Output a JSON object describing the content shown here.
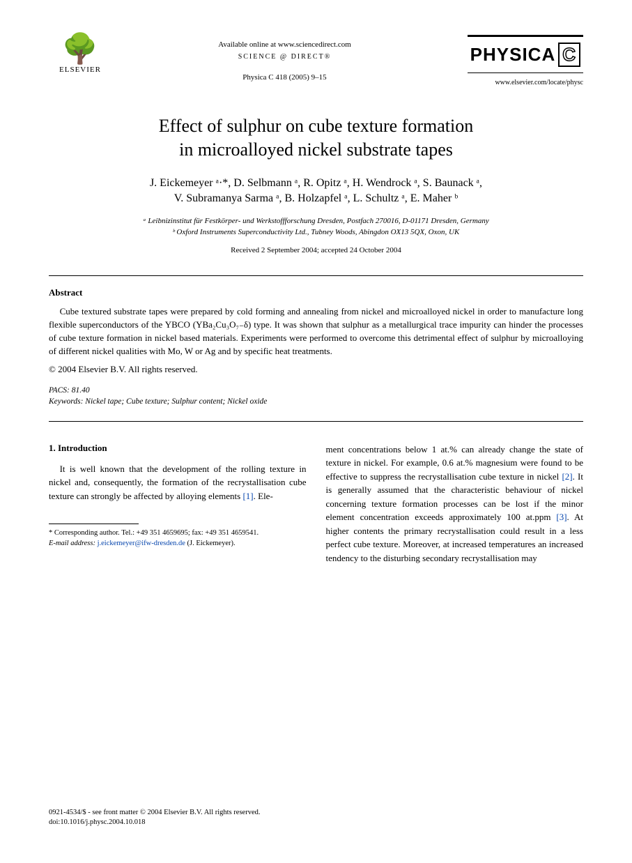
{
  "header": {
    "publisher_name": "ELSEVIER",
    "available_text": "Available online at www.sciencedirect.com",
    "science_direct": "SCIENCE @ DIRECT®",
    "journal_ref": "Physica C 418 (2005) 9–15",
    "journal_name": "PHYSICA",
    "journal_letter": "C",
    "journal_url": "www.elsevier.com/locate/physc"
  },
  "title_line1": "Effect of sulphur on cube texture formation",
  "title_line2": "in microalloyed nickel substrate tapes",
  "authors_line1": "J. Eickemeyer ᵃ·*, D. Selbmann ᵃ, R. Opitz ᵃ, H. Wendrock ᵃ, S. Baunack ᵃ,",
  "authors_line2": "V. Subramanya Sarma ᵃ, B. Holzapfel ᵃ, L. Schultz ᵃ, E. Maher ᵇ",
  "affiliation_a": "ᵃ Leibnizinstitut für Festkörper- und Werkstoffforschung Dresden, Postfach 270016, D-01171 Dresden, Germany",
  "affiliation_b": "ᵇ Oxford Instruments Superconductivity Ltd., Tubney Woods, Abingdon OX13 5QX, Oxon, UK",
  "dates": "Received 2 September 2004; accepted 24 October 2004",
  "abstract": {
    "heading": "Abstract",
    "text": "Cube textured substrate tapes were prepared by cold forming and annealing from nickel and microalloyed nickel in order to manufacture long flexible superconductors of the YBCO (YBa₂Cu₃O₇₋δ) type. It was shown that sulphur as a metallurgical trace impurity can hinder the processes of cube texture formation in nickel based materials. Experiments were performed to overcome this detrimental effect of sulphur by microalloying of different nickel qualities with Mo, W or Ag and by specific heat treatments.",
    "copyright": "© 2004 Elsevier B.V. All rights reserved."
  },
  "pacs": {
    "label": "PACS:",
    "value": "81.40"
  },
  "keywords": {
    "label": "Keywords:",
    "value": "Nickel tape; Cube texture; Sulphur content; Nickel oxide"
  },
  "body": {
    "section_heading": "1. Introduction",
    "col1_text": "It is well known that the development of the rolling texture in nickel and, consequently, the formation of the recrystallisation cube texture can strongly be affected by alloying elements ",
    "col1_ref1": "[1]",
    "col1_text_end": ". Ele-",
    "col2_text1": "ment concentrations below 1 at.% can already change the state of texture in nickel. For example, 0.6 at.% magnesium were found to be effective to suppress the recrystallisation cube texture in nickel ",
    "col2_ref2": "[2]",
    "col2_text2": ". It is generally assumed that the characteristic behaviour of nickel concerning texture formation processes can be lost if the minor element concentration exceeds approximately 100 at.ppm ",
    "col2_ref3": "[3]",
    "col2_text3": ". At higher contents the primary recrystallisation could result in a less perfect cube texture. Moreover, at increased temperatures an increased tendency to the disturbing secondary recrystallisation may"
  },
  "footnote": {
    "corresponding": "* Corresponding author. Tel.: +49 351 4659695; fax: +49 351 4659541.",
    "email_label": "E-mail address:",
    "email": "j.eickemeyer@ifw-dresden.de",
    "email_author": "(J. Eickemeyer)."
  },
  "footer": {
    "line1": "0921-4534/$ - see front matter © 2004 Elsevier B.V. All rights reserved.",
    "line2": "doi:10.1016/j.physc.2004.10.018"
  }
}
